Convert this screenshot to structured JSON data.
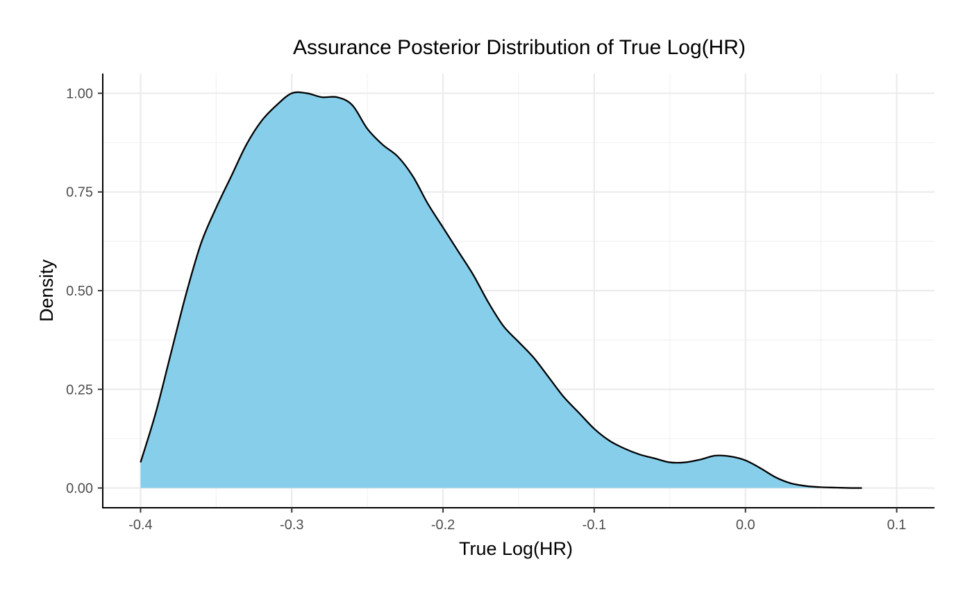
{
  "chart_data": {
    "type": "area",
    "title": "Assurance Posterior Distribution of True Log(HR)",
    "xlabel": "True Log(HR)",
    "ylabel": "Density",
    "xlim": [
      -0.425,
      0.125
    ],
    "ylim": [
      -0.05,
      1.05
    ],
    "x_ticks": [
      -0.4,
      -0.3,
      -0.2,
      -0.1,
      0.0,
      0.1
    ],
    "x_tick_labels": [
      "-0.4",
      "-0.3",
      "-0.2",
      "-0.1",
      "0.0",
      "0.1"
    ],
    "y_ticks": [
      0.0,
      0.25,
      0.5,
      0.75,
      1.0
    ],
    "y_tick_labels": [
      "0.00",
      "0.25",
      "0.50",
      "0.75",
      "1.00"
    ],
    "grid": true,
    "fill_color": "#87CEEB",
    "line_color": "#000000",
    "series": [
      {
        "x": [
          -0.4,
          -0.39,
          -0.38,
          -0.37,
          -0.36,
          -0.35,
          -0.34,
          -0.33,
          -0.32,
          -0.31,
          -0.3,
          -0.29,
          -0.28,
          -0.27,
          -0.26,
          -0.25,
          -0.24,
          -0.23,
          -0.22,
          -0.21,
          -0.2,
          -0.19,
          -0.18,
          -0.17,
          -0.16,
          -0.15,
          -0.14,
          -0.13,
          -0.12,
          -0.11,
          -0.1,
          -0.09,
          -0.08,
          -0.07,
          -0.06,
          -0.05,
          -0.04,
          -0.03,
          -0.02,
          -0.01,
          0.0,
          0.01,
          0.02,
          0.03,
          0.04,
          0.05,
          0.06,
          0.07,
          0.077
        ],
        "y": [
          0.065,
          0.19,
          0.34,
          0.49,
          0.62,
          0.71,
          0.79,
          0.87,
          0.93,
          0.97,
          1.0,
          1.0,
          0.99,
          0.99,
          0.97,
          0.91,
          0.87,
          0.84,
          0.79,
          0.72,
          0.66,
          0.6,
          0.54,
          0.47,
          0.41,
          0.37,
          0.33,
          0.28,
          0.23,
          0.19,
          0.15,
          0.12,
          0.1,
          0.085,
          0.075,
          0.065,
          0.065,
          0.072,
          0.082,
          0.08,
          0.07,
          0.05,
          0.027,
          0.012,
          0.005,
          0.002,
          0.001,
          0.0,
          0.0
        ]
      }
    ]
  }
}
